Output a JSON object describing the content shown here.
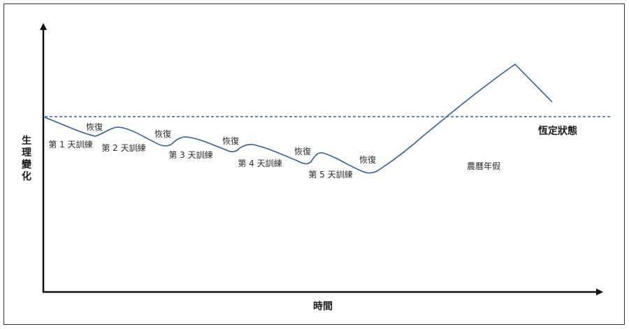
{
  "labels": {
    "y_axis": [
      "生",
      "理",
      "變",
      "化"
    ],
    "x_axis": "時間",
    "baseline": "恆定狀態",
    "holiday": "農曆年假",
    "training": [
      "第 1 天訓練",
      "第 2 天訓練",
      "第 3 天訓練",
      "第 4 天訓練",
      "第 5 天訓練"
    ],
    "recovery": [
      "恢復",
      "恢復",
      "恢復",
      "恢復",
      "恢復"
    ]
  },
  "colors": {
    "curve": "#2e5f9e",
    "baseline": "#2e5f9e",
    "axis": "#111111",
    "frame": "#333333"
  }
}
